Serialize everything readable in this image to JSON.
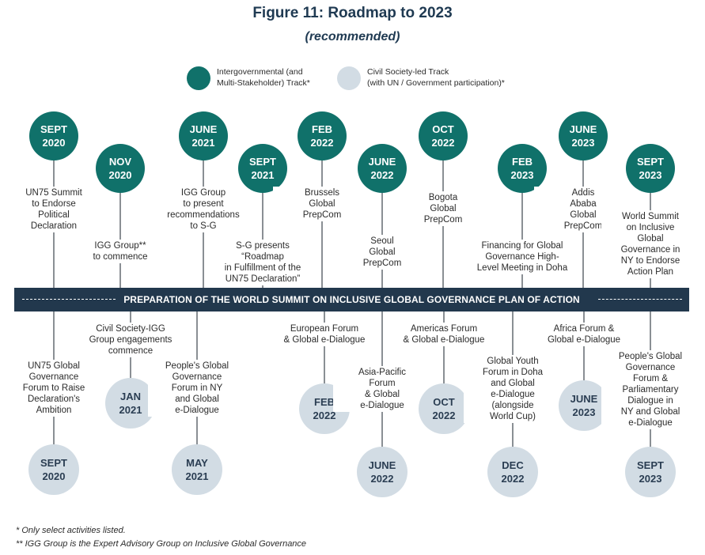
{
  "title": "Figure 11: Roadmap to 2023",
  "subtitle": "(recommended)",
  "legend": {
    "intergovernmental": {
      "line1": "Intergovernmental  (and",
      "line2": "Multi-Stakeholder) Track*",
      "color": "#10716a"
    },
    "civil_society": {
      "line1": "Civil Society-led Track",
      "line2": "(with UN / Government participation)*",
      "color": "#d2dce4"
    }
  },
  "banner": "PREPARATION OF THE WORLD SUMMIT ON INCLUSIVE GLOBAL GOVERNANCE PLAN OF ACTION",
  "top_milestones": [
    {
      "month": "SEPT",
      "year": "2020",
      "l1": "UN75 Summit",
      "l2": "to Endorse",
      "l3": "Political",
      "l4": "Declaration",
      "l5": ""
    },
    {
      "month": "NOV",
      "year": "2020",
      "l1": "IGG Group**",
      "l2": "to commence",
      "l3": "",
      "l4": "",
      "l5": ""
    },
    {
      "month": "JUNE",
      "year": "2021",
      "l1": "IGG Group",
      "l2": "to present",
      "l3": "recommendations",
      "l4": "to S-G",
      "l5": ""
    },
    {
      "month": "SEPT",
      "year": "2021",
      "l1": "S-G presents “Roadmap",
      "l2": "in Fulfillment of the",
      "l3": "UN75 Declaration”",
      "l4": "",
      "l5": ""
    },
    {
      "month": "FEB",
      "year": "2022",
      "l1": "Brussels",
      "l2": "Global",
      "l3": "PrepCom",
      "l4": "",
      "l5": ""
    },
    {
      "month": "JUNE",
      "year": "2022",
      "l1": "Seoul",
      "l2": "Global",
      "l3": "PrepCom",
      "l4": "",
      "l5": ""
    },
    {
      "month": "OCT",
      "year": "2022",
      "l1": "Bogota",
      "l2": "Global",
      "l3": "PrepCom",
      "l4": "",
      "l5": ""
    },
    {
      "month": "FEB",
      "year": "2023",
      "l1": "Financing for Global",
      "l2": "Governance High-",
      "l3": "Level Meeting in Doha",
      "l4": "",
      "l5": ""
    },
    {
      "month": "JUNE",
      "year": "2023",
      "l1": "Addis",
      "l2": "Ababa",
      "l3": "Global",
      "l4": "PrepCom",
      "l5": ""
    },
    {
      "month": "SEPT",
      "year": "2023",
      "l1": "World Summit",
      "l2": "on Inclusive",
      "l3": "Global",
      "l4": "Governance in",
      "l5": "NY to Endorse",
      "l6": "Action Plan"
    }
  ],
  "bottom_milestones": [
    {
      "month": "SEPT",
      "year": "2020",
      "l1": "UN75 Global",
      "l2": "Governance",
      "l3": "Forum to Raise",
      "l4": "Declaration's",
      "l5": "Ambition"
    },
    {
      "month": "JAN",
      "year": "2021",
      "l1": "Civil Society-IGG",
      "l2": "Group engagements",
      "l3": "commence",
      "l4": "",
      "l5": ""
    },
    {
      "month": "MAY",
      "year": "2021",
      "l1": "People's Global",
      "l2": "Governance",
      "l3": "Forum in NY",
      "l4": "and Global",
      "l5": "e-Dialogue"
    },
    {
      "month": "FEB",
      "year": "2022",
      "l1": "European Forum",
      "l2": "& Global e-Dialogue",
      "l3": "",
      "l4": "",
      "l5": ""
    },
    {
      "month": "JUNE",
      "year": "2022",
      "l1": "Asia-Pacific",
      "l2": "Forum",
      "l3": "& Global",
      "l4": "e-Dialogue",
      "l5": ""
    },
    {
      "month": "OCT",
      "year": "2022",
      "l1": "Americas Forum",
      "l2": "& Global e-Dialogue",
      "l3": "",
      "l4": "",
      "l5": ""
    },
    {
      "month": "DEC",
      "year": "2022",
      "l1": "Global Youth",
      "l2": "Forum in Doha",
      "l3": "and Global",
      "l4": "e-Dialogue",
      "l5": "(alongside",
      "l6": "World Cup)"
    },
    {
      "month": "JUNE",
      "year": "2023",
      "l1": "Africa Forum &",
      "l2": "Global e-Dialogue",
      "l3": "",
      "l4": "",
      "l5": ""
    },
    {
      "month": "SEPT",
      "year": "2023",
      "l1": "People's Global",
      "l2": "Governance",
      "l3": "Forum &",
      "l4": "Parliamentary",
      "l5": "Dialogue in",
      "l6": "NY and Global",
      "l7": "e-Dialogue"
    }
  ],
  "footnotes": {
    "f1": "* Only select activities listed.",
    "f2": "** IGG Group is the Expert Advisory Group on Inclusive Global Governance"
  }
}
